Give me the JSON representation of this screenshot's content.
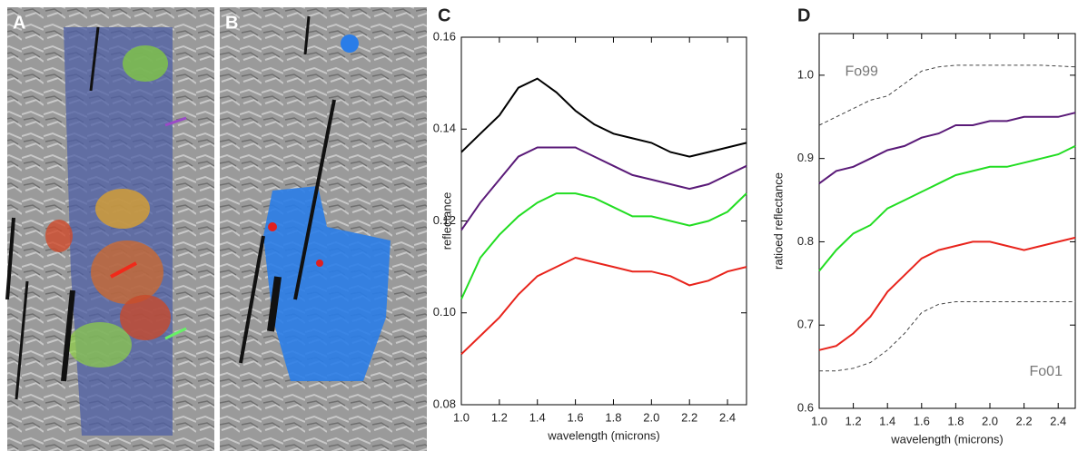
{
  "images": [
    {
      "label": "A"
    },
    {
      "label": "B"
    }
  ],
  "chart_data": [
    {
      "type": "line",
      "label": "C",
      "x_label": "wavelength (microns)",
      "y_label": "reflectance",
      "x": [
        1.0,
        1.1,
        1.2,
        1.3,
        1.4,
        1.5,
        1.6,
        1.7,
        1.8,
        1.9,
        2.0,
        2.1,
        2.2,
        2.3,
        2.4,
        2.5
      ],
      "xlim": [
        1.0,
        2.5
      ],
      "xticks": [
        {
          "value": 1.0,
          "label": "1.0"
        },
        1.2,
        1.4,
        1.6,
        1.8,
        {
          "value": 2.0,
          "label": "2.0"
        },
        2.2,
        2.4
      ],
      "ylim": [
        0.08,
        0.16
      ],
      "yticks": [
        0.08,
        {
          "value": 0.1,
          "label": "0.10"
        },
        0.12,
        0.14,
        0.16
      ],
      "series": [
        {
          "color": "#000000",
          "values": [
            0.135,
            0.139,
            0.143,
            0.149,
            0.151,
            0.148,
            0.144,
            0.141,
            0.139,
            0.138,
            0.137,
            0.135,
            0.134,
            0.135,
            0.136,
            0.137
          ]
        },
        {
          "color": "#5a1a78",
          "values": [
            0.118,
            0.124,
            0.129,
            0.134,
            0.136,
            0.136,
            0.136,
            0.134,
            0.132,
            0.13,
            0.129,
            0.128,
            0.127,
            0.128,
            0.13,
            0.132
          ]
        },
        {
          "color": "#22dd22",
          "values": [
            0.103,
            0.112,
            0.117,
            0.121,
            0.124,
            0.126,
            0.126,
            0.125,
            0.123,
            0.121,
            0.121,
            0.12,
            0.119,
            0.12,
            0.122,
            0.126
          ]
        },
        {
          "color": "#e8241c",
          "values": [
            0.091,
            0.095,
            0.099,
            0.104,
            0.108,
            0.11,
            0.112,
            0.111,
            0.11,
            0.109,
            0.109,
            0.108,
            0.106,
            0.107,
            0.109,
            0.11
          ]
        }
      ]
    },
    {
      "type": "line",
      "label": "D",
      "x_label": "wavelength (microns)",
      "y_label": "ratioed reflectance",
      "x": [
        1.0,
        1.1,
        1.2,
        1.3,
        1.4,
        1.5,
        1.6,
        1.7,
        1.8,
        1.9,
        2.0,
        2.1,
        2.2,
        2.3,
        2.4,
        2.5
      ],
      "xlim": [
        1.0,
        2.5
      ],
      "xticks": [
        {
          "value": 1.0,
          "label": "1.0"
        },
        1.2,
        1.4,
        1.6,
        1.8,
        {
          "value": 2.0,
          "label": "2.0"
        },
        2.2,
        2.4
      ],
      "ylim": [
        0.6,
        1.05
      ],
      "yticks": [
        0.6,
        0.7,
        0.8,
        0.9,
        {
          "value": 1.0,
          "label": "1.0"
        }
      ],
      "series": [
        {
          "name": "Fo99",
          "color": "#444444",
          "dashed": true,
          "values": [
            0.94,
            0.95,
            0.96,
            0.97,
            0.975,
            0.99,
            1.005,
            1.01,
            1.012,
            1.012,
            1.012,
            1.012,
            1.012,
            1.012,
            1.011,
            1.01
          ]
        },
        {
          "color": "#5a1a78",
          "values": [
            0.87,
            0.885,
            0.89,
            0.9,
            0.91,
            0.915,
            0.925,
            0.93,
            0.94,
            0.94,
            0.945,
            0.945,
            0.95,
            0.95,
            0.95,
            0.955
          ]
        },
        {
          "color": "#22dd22",
          "values": [
            0.765,
            0.79,
            0.81,
            0.82,
            0.84,
            0.85,
            0.86,
            0.87,
            0.88,
            0.885,
            0.89,
            0.89,
            0.895,
            0.9,
            0.905,
            0.915
          ]
        },
        {
          "color": "#e8241c",
          "values": [
            0.67,
            0.675,
            0.69,
            0.71,
            0.74,
            0.76,
            0.78,
            0.79,
            0.795,
            0.8,
            0.8,
            0.795,
            0.79,
            0.795,
            0.8,
            0.805
          ]
        },
        {
          "name": "Fo01",
          "color": "#444444",
          "dashed": true,
          "values": [
            0.645,
            0.645,
            0.648,
            0.655,
            0.67,
            0.69,
            0.715,
            0.725,
            0.728,
            0.728,
            0.728,
            0.728,
            0.728,
            0.728,
            0.728,
            0.728
          ]
        }
      ]
    }
  ]
}
